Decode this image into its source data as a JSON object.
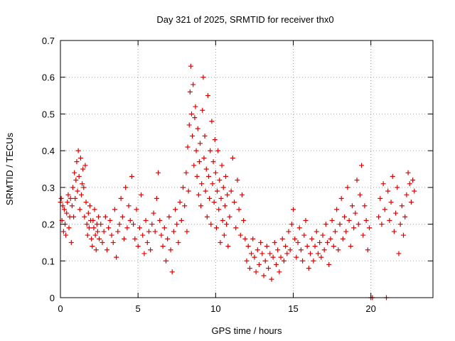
{
  "chart_data": {
    "type": "scatter",
    "title": "Day 321 of 2025, SRMTID for receiver thx0",
    "xlabel": "GPS time / hours",
    "ylabel": "SRMTID / TECUs",
    "xlim": [
      0,
      24
    ],
    "ylim": [
      0,
      0.7
    ],
    "xticks": [
      0,
      5,
      10,
      15,
      20
    ],
    "xtick_labels": [
      "0",
      "5",
      "10",
      "15",
      "20"
    ],
    "yticks": [
      0,
      0.1,
      0.2,
      0.3,
      0.4,
      0.5,
      0.6,
      0.7
    ],
    "ytick_labels": [
      "0",
      "0.1",
      "0.2",
      "0.3",
      "0.4",
      "0.5",
      "0.6",
      "0.7"
    ],
    "grid": true,
    "marker": "plus",
    "colors": {
      "series": "#e00000",
      "grid": "#a0a0a0",
      "axes": "#000000"
    },
    "series": [
      {
        "name": "SRMTID",
        "points": [
          [
            0.0,
            0.26
          ],
          [
            0.05,
            0.27
          ],
          [
            0.1,
            0.21
          ],
          [
            0.15,
            0.25
          ],
          [
            0.2,
            0.18
          ],
          [
            0.25,
            0.24
          ],
          [
            0.3,
            0.2
          ],
          [
            0.35,
            0.17
          ],
          [
            0.4,
            0.23
          ],
          [
            0.45,
            0.26
          ],
          [
            0.5,
            0.28
          ],
          [
            0.55,
            0.19
          ],
          [
            0.6,
            0.22
          ],
          [
            0.65,
            0.27
          ],
          [
            0.7,
            0.15
          ],
          [
            0.75,
            0.25
          ],
          [
            0.8,
            0.3
          ],
          [
            0.85,
            0.22
          ],
          [
            0.9,
            0.34
          ],
          [
            0.95,
            0.27
          ],
          [
            1.0,
            0.32
          ],
          [
            1.05,
            0.37
          ],
          [
            1.1,
            0.29
          ],
          [
            1.15,
            0.4
          ],
          [
            1.2,
            0.33
          ],
          [
            1.25,
            0.24
          ],
          [
            1.3,
            0.38
          ],
          [
            1.35,
            0.28
          ],
          [
            1.4,
            0.31
          ],
          [
            1.45,
            0.35
          ],
          [
            1.5,
            0.3
          ],
          [
            1.55,
            0.22
          ],
          [
            1.6,
            0.36
          ],
          [
            1.65,
            0.26
          ],
          [
            1.7,
            0.2
          ],
          [
            1.75,
            0.17
          ],
          [
            1.8,
            0.23
          ],
          [
            1.85,
            0.19
          ],
          [
            1.9,
            0.25
          ],
          [
            1.95,
            0.21
          ],
          [
            2.0,
            0.16
          ],
          [
            2.05,
            0.14
          ],
          [
            2.1,
            0.21
          ],
          [
            2.15,
            0.19
          ],
          [
            2.2,
            0.24
          ],
          [
            2.25,
            0.17
          ],
          [
            2.3,
            0.13
          ],
          [
            2.35,
            0.2
          ],
          [
            2.4,
            0.18
          ],
          [
            2.45,
            0.22
          ],
          [
            2.5,
            0.16
          ],
          [
            2.6,
            0.2
          ],
          [
            2.7,
            0.15
          ],
          [
            2.8,
            0.18
          ],
          [
            2.9,
            0.22
          ],
          [
            3.0,
            0.13
          ],
          [
            3.1,
            0.19
          ],
          [
            3.2,
            0.21
          ],
          [
            3.3,
            0.17
          ],
          [
            3.4,
            0.15
          ],
          [
            3.5,
            0.24
          ],
          [
            3.6,
            0.11
          ],
          [
            3.7,
            0.18
          ],
          [
            3.8,
            0.2
          ],
          [
            3.9,
            0.27
          ],
          [
            4.0,
            0.22
          ],
          [
            4.1,
            0.16
          ],
          [
            4.2,
            0.3
          ],
          [
            4.3,
            0.19
          ],
          [
            4.4,
            0.25
          ],
          [
            4.5,
            0.21
          ],
          [
            4.6,
            0.33
          ],
          [
            4.7,
            0.2
          ],
          [
            4.8,
            0.16
          ],
          [
            4.9,
            0.24
          ],
          [
            5.0,
            0.14
          ],
          [
            5.1,
            0.19
          ],
          [
            5.2,
            0.28
          ],
          [
            5.3,
            0.17
          ],
          [
            5.4,
            0.12
          ],
          [
            5.5,
            0.21
          ],
          [
            5.6,
            0.15
          ],
          [
            5.7,
            0.18
          ],
          [
            5.8,
            0.13
          ],
          [
            5.9,
            0.2
          ],
          [
            6.0,
            0.23
          ],
          [
            6.1,
            0.18
          ],
          [
            6.2,
            0.27
          ],
          [
            6.3,
            0.34
          ],
          [
            6.4,
            0.21
          ],
          [
            6.5,
            0.17
          ],
          [
            6.6,
            0.14
          ],
          [
            6.7,
            0.19
          ],
          [
            6.8,
            0.1
          ],
          [
            6.9,
            0.16
          ],
          [
            7.0,
            0.22
          ],
          [
            7.1,
            0.13
          ],
          [
            7.2,
            0.07
          ],
          [
            7.3,
            0.18
          ],
          [
            7.4,
            0.24
          ],
          [
            7.5,
            0.2
          ],
          [
            7.6,
            0.15
          ],
          [
            7.7,
            0.26
          ],
          [
            7.8,
            0.21
          ],
          [
            7.9,
            0.3
          ],
          [
            8.0,
            0.25
          ],
          [
            8.1,
            0.34
          ],
          [
            8.15,
            0.18
          ],
          [
            8.2,
            0.41
          ],
          [
            8.25,
            0.29
          ],
          [
            8.3,
            0.47
          ],
          [
            8.35,
            0.56
          ],
          [
            8.4,
            0.63
          ],
          [
            8.45,
            0.5
          ],
          [
            8.5,
            0.44
          ],
          [
            8.55,
            0.58
          ],
          [
            8.6,
            0.36
          ],
          [
            8.65,
            0.49
          ],
          [
            8.7,
            0.52
          ],
          [
            8.75,
            0.4
          ],
          [
            8.8,
            0.33
          ],
          [
            8.85,
            0.46
          ],
          [
            8.9,
            0.28
          ],
          [
            8.95,
            0.37
          ],
          [
            9.0,
            0.42
          ],
          [
            9.05,
            0.25
          ],
          [
            9.1,
            0.31
          ],
          [
            9.15,
            0.51
          ],
          [
            9.2,
            0.6
          ],
          [
            9.25,
            0.38
          ],
          [
            9.3,
            0.44
          ],
          [
            9.35,
            0.29
          ],
          [
            9.4,
            0.35
          ],
          [
            9.45,
            0.22
          ],
          [
            9.5,
            0.55
          ],
          [
            9.55,
            0.33
          ],
          [
            9.6,
            0.27
          ],
          [
            9.65,
            0.4
          ],
          [
            9.7,
            0.2
          ],
          [
            9.75,
            0.48
          ],
          [
            9.8,
            0.31
          ],
          [
            9.85,
            0.37
          ],
          [
            9.9,
            0.26
          ],
          [
            9.95,
            0.43
          ],
          [
            10.0,
            0.34
          ],
          [
            10.05,
            0.19
          ],
          [
            10.1,
            0.29
          ],
          [
            10.15,
            0.4
          ],
          [
            10.2,
            0.24
          ],
          [
            10.25,
            0.32
          ],
          [
            10.3,
            0.15
          ],
          [
            10.35,
            0.27
          ],
          [
            10.4,
            0.36
          ],
          [
            10.45,
            0.21
          ],
          [
            10.5,
            0.3
          ],
          [
            10.55,
            0.17
          ],
          [
            10.6,
            0.25
          ],
          [
            10.65,
            0.33
          ],
          [
            10.7,
            0.2
          ],
          [
            10.75,
            0.28
          ],
          [
            10.8,
            0.14
          ],
          [
            10.9,
            0.22
          ],
          [
            11.0,
            0.29
          ],
          [
            11.1,
            0.38
          ],
          [
            11.2,
            0.26
          ],
          [
            11.3,
            0.19
          ],
          [
            11.4,
            0.32
          ],
          [
            11.5,
            0.24
          ],
          [
            11.6,
            0.17
          ],
          [
            11.7,
            0.28
          ],
          [
            11.8,
            0.21
          ],
          [
            11.9,
            0.16
          ],
          [
            12.0,
            0.1
          ],
          [
            12.1,
            0.14
          ],
          [
            12.2,
            0.08
          ],
          [
            12.3,
            0.12
          ],
          [
            12.4,
            0.16
          ],
          [
            12.5,
            0.11
          ],
          [
            12.6,
            0.07
          ],
          [
            12.7,
            0.13
          ],
          [
            12.8,
            0.09
          ],
          [
            12.9,
            0.15
          ],
          [
            13.0,
            0.12
          ],
          [
            13.1,
            0.06
          ],
          [
            13.2,
            0.1
          ],
          [
            13.3,
            0.14
          ],
          [
            13.4,
            0.08
          ],
          [
            13.5,
            0.12
          ],
          [
            13.6,
            0.05
          ],
          [
            13.7,
            0.11
          ],
          [
            13.8,
            0.15
          ],
          [
            13.9,
            0.09
          ],
          [
            14.0,
            0.13
          ],
          [
            14.1,
            0.07
          ],
          [
            14.2,
            0.11
          ],
          [
            14.3,
            0.16
          ],
          [
            14.4,
            0.1
          ],
          [
            14.5,
            0.14
          ],
          [
            14.6,
            0.12
          ],
          [
            14.7,
            0.18
          ],
          [
            14.8,
            0.13
          ],
          [
            14.9,
            0.2
          ],
          [
            15.0,
            0.24
          ],
          [
            15.1,
            0.16
          ],
          [
            15.2,
            0.11
          ],
          [
            15.3,
            0.15
          ],
          [
            15.4,
            0.19
          ],
          [
            15.5,
            0.13
          ],
          [
            15.6,
            0.1
          ],
          [
            15.7,
            0.17
          ],
          [
            15.8,
            0.21
          ],
          [
            15.9,
            0.14
          ],
          [
            16.0,
            0.08
          ],
          [
            16.1,
            0.12
          ],
          [
            16.2,
            0.16
          ],
          [
            16.3,
            0.1
          ],
          [
            16.4,
            0.14
          ],
          [
            16.5,
            0.18
          ],
          [
            16.6,
            0.12
          ],
          [
            16.7,
            0.15
          ],
          [
            16.8,
            0.11
          ],
          [
            16.9,
            0.17
          ],
          [
            17.0,
            0.13
          ],
          [
            17.1,
            0.2
          ],
          [
            17.2,
            0.15
          ],
          [
            17.3,
            0.09
          ],
          [
            17.4,
            0.16
          ],
          [
            17.5,
            0.21
          ],
          [
            17.6,
            0.14
          ],
          [
            17.7,
            0.18
          ],
          [
            17.8,
            0.24
          ],
          [
            17.9,
            0.13
          ],
          [
            18.0,
            0.2
          ],
          [
            18.1,
            0.27
          ],
          [
            18.2,
            0.16
          ],
          [
            18.3,
            0.22
          ],
          [
            18.4,
            0.18
          ],
          [
            18.5,
            0.3
          ],
          [
            18.6,
            0.21
          ],
          [
            18.7,
            0.14
          ],
          [
            18.8,
            0.25
          ],
          [
            18.9,
            0.19
          ],
          [
            19.0,
            0.23
          ],
          [
            19.1,
            0.32
          ],
          [
            19.2,
            0.2
          ],
          [
            19.3,
            0.28
          ],
          [
            19.4,
            0.36
          ],
          [
            19.5,
            0.17
          ],
          [
            19.6,
            0.25
          ],
          [
            19.7,
            0.21
          ],
          [
            19.8,
            0.13
          ],
          [
            19.9,
            0.19
          ],
          [
            20.0,
            0.0
          ],
          [
            20.1,
            0.0
          ],
          [
            20.5,
            0.22
          ],
          [
            20.6,
            0.27
          ],
          [
            20.7,
            0.2
          ],
          [
            20.8,
            0.31
          ],
          [
            20.9,
            0.24
          ],
          [
            21.0,
            0.0
          ],
          [
            21.1,
            0.29
          ],
          [
            21.2,
            0.21
          ],
          [
            21.3,
            0.26
          ],
          [
            21.4,
            0.33
          ],
          [
            21.5,
            0.18
          ],
          [
            21.6,
            0.23
          ],
          [
            21.7,
            0.3
          ],
          [
            21.8,
            0.12
          ],
          [
            21.9,
            0.2
          ],
          [
            22.0,
            0.25
          ],
          [
            22.1,
            0.17
          ],
          [
            22.2,
            0.22
          ],
          [
            22.3,
            0.28
          ],
          [
            22.4,
            0.34
          ],
          [
            22.5,
            0.31
          ],
          [
            22.6,
            0.26
          ],
          [
            22.7,
            0.32
          ],
          [
            22.8,
            0.29
          ]
        ]
      }
    ]
  }
}
